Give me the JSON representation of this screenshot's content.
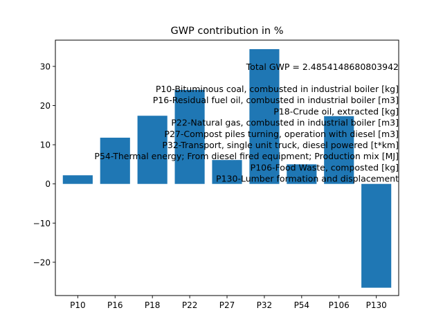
{
  "chart_data": {
    "type": "bar",
    "title": "GWP contribution in %",
    "xlabel": "",
    "ylabel": "",
    "categories": [
      "P10",
      "P16",
      "P18",
      "P22",
      "P27",
      "P32",
      "P54",
      "P106",
      "P130"
    ],
    "values": [
      2.2,
      11.8,
      17.4,
      24.0,
      6.1,
      34.4,
      5.0,
      17.3,
      -26.5
    ],
    "ylim": [
      -28.5,
      36.7
    ],
    "yticks": [
      -20,
      -10,
      0,
      10,
      20,
      30
    ],
    "ytick_labels": [
      "−20",
      "−10",
      "0",
      "10",
      "20",
      "30"
    ],
    "grid": false,
    "bar_color": "#1f77b4",
    "annotation": {
      "total": "Total GWP = 2.4854148680803942",
      "legend_lines": [
        "P10-Bituminous coal, combusted in industrial boiler [kg]",
        "P16-Residual fuel oil, combusted in industrial boiler [m3]",
        "P18-Crude oil, extracted [kg]",
        "P22-Natural gas, combusted in industrial boiler [m3]",
        "P27-Compost piles turning, operation with diesel [m3]",
        "P32-Transport, single unit truck, diesel powered [t*km]",
        "P54-Thermal energy; From diesel fired equipment; Production mix [MJ]",
        "P106-Food Waste, composted [kg]",
        "P130-Lumber formation and displacement"
      ]
    }
  }
}
